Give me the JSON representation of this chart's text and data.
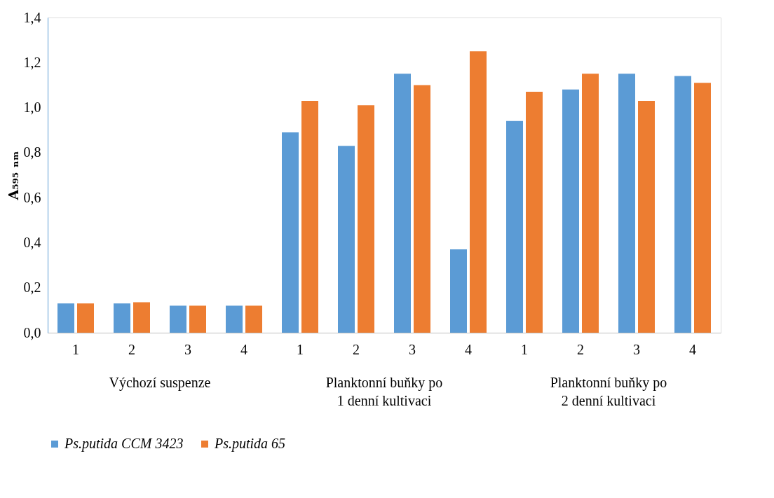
{
  "chart_data": {
    "type": "bar",
    "ylabel": "A₅₉₅ ₙₘ",
    "categories": [
      "1",
      "2",
      "3",
      "4",
      "1",
      "2",
      "3",
      "4",
      "1",
      "2",
      "3",
      "4"
    ],
    "series": [
      {
        "name": "Ps.putida CCM 3423",
        "color": "#5b9bd5",
        "values": [
          0.13,
          0.13,
          0.12,
          0.12,
          0.89,
          0.83,
          1.15,
          0.37,
          0.94,
          1.08,
          1.15,
          1.14
        ]
      },
      {
        "name": "Ps.putida 65",
        "color": "#ed7d31",
        "values": [
          0.13,
          0.135,
          0.12,
          0.12,
          1.03,
          1.01,
          1.1,
          1.25,
          1.07,
          1.15,
          1.03,
          1.11
        ]
      }
    ],
    "ylim": [
      0,
      1.4
    ],
    "yticks": [
      {
        "value": 0,
        "label": "0,0"
      },
      {
        "value": 0.2,
        "label": "0,2"
      },
      {
        "value": 0.4,
        "label": "0,4"
      },
      {
        "value": 0.6,
        "label": "0,6"
      },
      {
        "value": 0.8,
        "label": "0,8"
      },
      {
        "value": 1.0,
        "label": "1,0"
      },
      {
        "value": 1.2,
        "label": "1,2"
      },
      {
        "value": 1.4,
        "label": "1,4"
      }
    ],
    "annotations": [
      "Výchozí suspenze",
      "Planktonní buňky po\n1 denní kultivaci",
      "Planktonní buňky po\n2 denní kultivaci"
    ],
    "legend": "bottom",
    "grid": false
  }
}
